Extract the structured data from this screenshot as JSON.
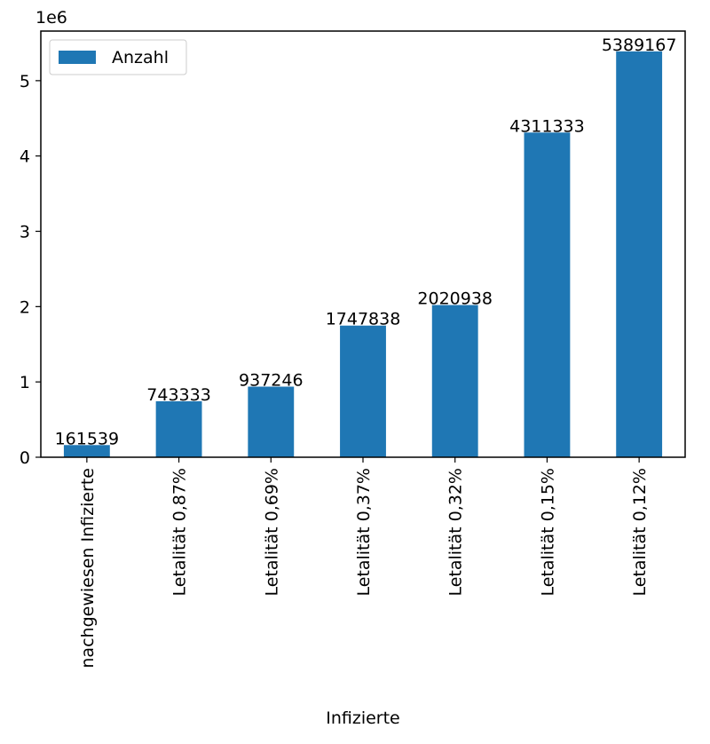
{
  "chart_data": {
    "type": "bar",
    "categories": [
      "nachgewiesen Infizierte",
      "Letalität 0,87%",
      "Letalität 0,69%",
      "Letalität 0,37%",
      "Letalität 0,32%",
      "Letalität 0,15%",
      "Letalität 0,12%"
    ],
    "series": [
      {
        "name": "Anzahl",
        "values": [
          161539,
          743333,
          937246,
          1747838,
          2020938,
          4311333,
          5389167
        ]
      }
    ],
    "data_labels": [
      "161539",
      "743333",
      "937246",
      "1747838",
      "2020938",
      "4311333",
      "5389167"
    ],
    "title": "",
    "xlabel": "Infizierte",
    "ylabel": "",
    "y_offset_label": "1e6",
    "y_ticks": [
      0,
      1000000,
      2000000,
      3000000,
      4000000,
      5000000
    ],
    "y_tick_labels": [
      "0",
      "1",
      "2",
      "3",
      "4",
      "5"
    ],
    "ylim": [
      0,
      5658625
    ],
    "grid": false,
    "legend_position": "upper left",
    "colors": {
      "bar": "#1f77b4",
      "axis": "#000000",
      "background": "#ffffff"
    }
  }
}
